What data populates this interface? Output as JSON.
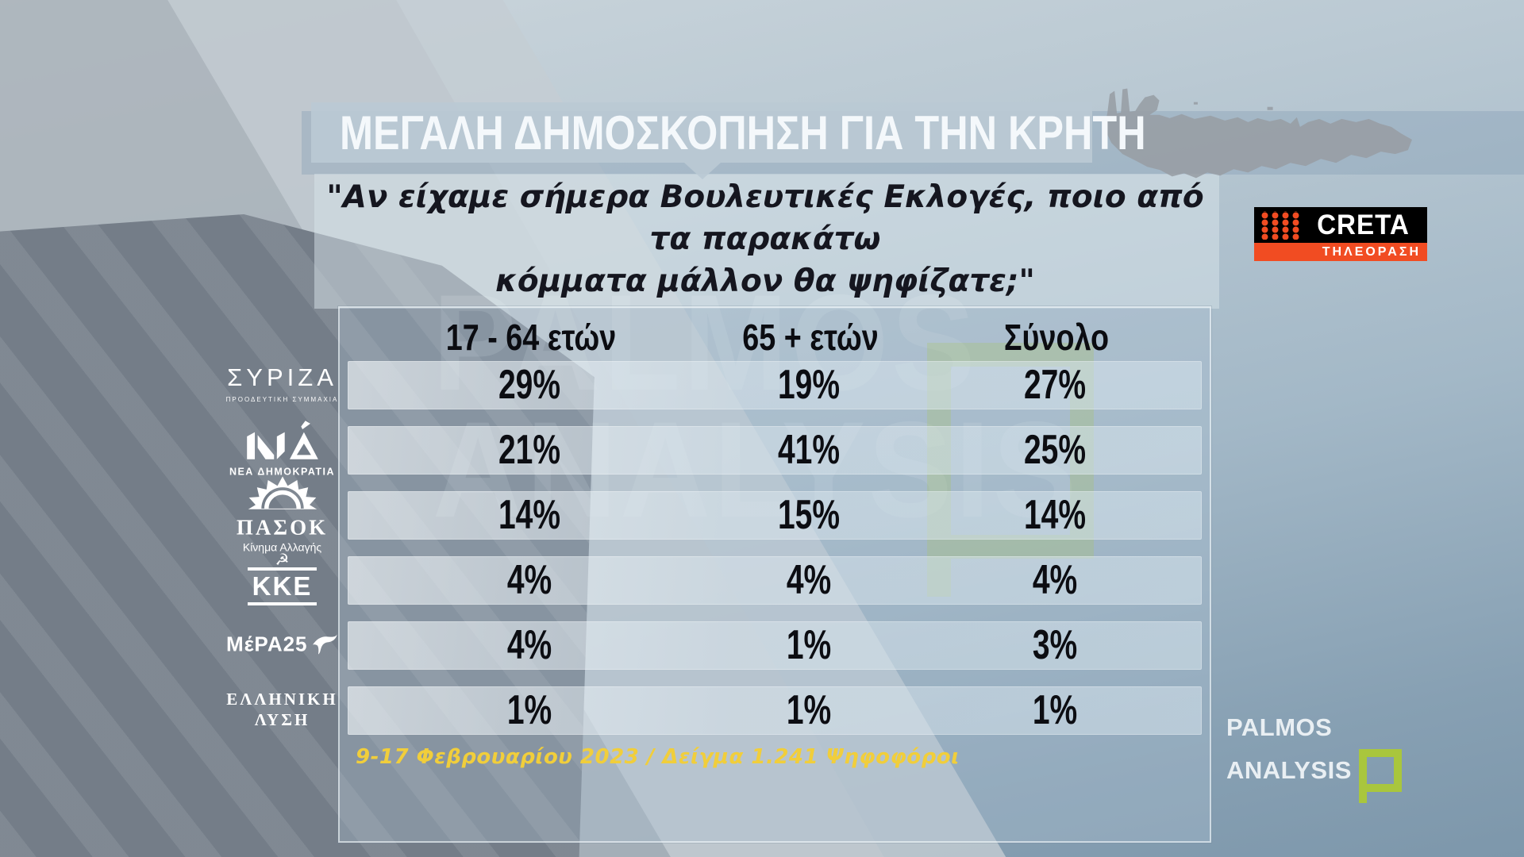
{
  "title_banner": "ΜΕΓΑΛΗ ΔΗΜΟΣΚΟΠΗΣΗ ΓΙΑ ΤΗΝ ΚΡΗΤΗ",
  "question": {
    "line1": "\"Αν είχαμε σήμερα Βουλευτικές Εκλογές, ποιο από τα παρακάτω",
    "line2": "κόμματα μάλλον θα ψηφίζατε;\""
  },
  "logos": {
    "creta": {
      "name": "CRETA",
      "subtitle": "ΤΗΛΕΟΡΑΣΗ",
      "accent": "#f14c22",
      "bg": "#000000"
    },
    "palmos": {
      "line1": "PALMOS",
      "line2": "ANALYSIS",
      "accent": "#a9c63d"
    }
  },
  "watermark": {
    "line1": "PALMOS",
    "line2": "ANALYSIS"
  },
  "colors": {
    "footnote_yellow": "#f1ce3b",
    "banner": "#bac9d4",
    "text_dark": "#15161f"
  },
  "chart_data": {
    "type": "table",
    "title": "ΜΕΓΑΛΗ ΔΗΜΟΣΚΟΠΗΣΗ ΓΙΑ ΤΗΝ ΚΡΗΤΗ",
    "question": "\"Αν είχαμε σήμερα Βουλευτικές Εκλογές, ποιο από τα παρακάτω κόμματα μάλλον θα ψηφίζατε;\"",
    "columns": [
      "17 - 64 ετών",
      "65 + ετών",
      "Σύνολο"
    ],
    "rows": [
      {
        "party": "ΣΥΡΙΖΑ",
        "subtitle": "ΠΡΟΟΔΕΥΤΙΚΗ ΣΥΜΜΑΧΙΑ",
        "values": [
          "29%",
          "19%",
          "27%"
        ]
      },
      {
        "party": "ΝΔ",
        "subtitle": "ΝΕΑ ΔΗΜΟΚΡΑΤΙΑ",
        "values": [
          "21%",
          "41%",
          "25%"
        ]
      },
      {
        "party": "ΠΑΣΟΚ",
        "subtitle": "Κίνημα Αλλαγής",
        "values": [
          "14%",
          "15%",
          "14%"
        ]
      },
      {
        "party": "ΚΚΕ",
        "subtitle": "",
        "values": [
          "4%",
          "4%",
          "4%"
        ]
      },
      {
        "party": "ΜέΡΑ25",
        "subtitle": "",
        "values": [
          "4%",
          "1%",
          "3%"
        ]
      },
      {
        "party": "ΕΛΛΗΝΙΚΗ ΛΥΣΗ",
        "subtitle": "",
        "values": [
          "1%",
          "1%",
          "1%"
        ]
      }
    ],
    "note": "9-17 Φεβρουαρίου 2023 / Δείγμα 1.241 Ψηφοφόροι",
    "legend_position": "none",
    "grid": false
  }
}
